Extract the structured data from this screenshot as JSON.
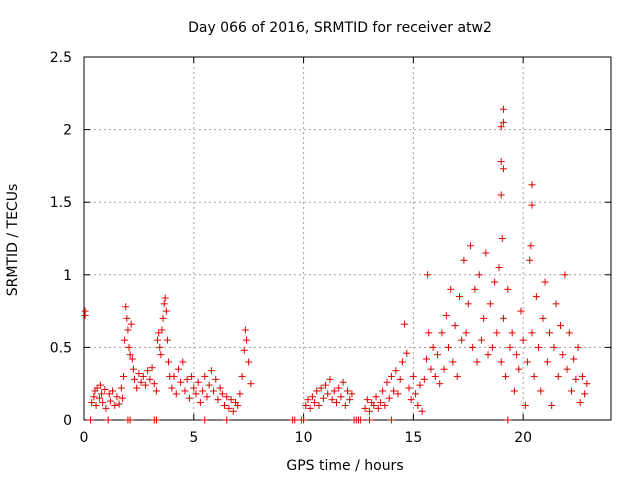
{
  "chart_data": {
    "type": "scatter",
    "title": "Day 066 of 2016, SRMTID for receiver atw2",
    "xlabel": "GPS time / hours",
    "ylabel": "SRMTID / TECUs",
    "xlim": [
      0,
      24
    ],
    "ylim": [
      0,
      2.5
    ],
    "xticks": [
      0,
      5,
      10,
      15,
      20
    ],
    "yticks": [
      0,
      0.5,
      1,
      1.5,
      2,
      2.5
    ],
    "xtick_labels": [
      "0",
      "5",
      "10",
      "15",
      "20"
    ],
    "ytick_labels": [
      "0",
      "0.5",
      "1",
      "1.5",
      "2",
      "2.5"
    ],
    "grid": true,
    "marker": "+",
    "color": "#e00000",
    "series": [
      {
        "name": "atw2",
        "points": [
          [
            0.05,
            0.75
          ],
          [
            0.05,
            0.72
          ],
          [
            0.3,
            0.0
          ],
          [
            0.35,
            0.12
          ],
          [
            0.45,
            0.16
          ],
          [
            0.5,
            0.2
          ],
          [
            0.55,
            0.1
          ],
          [
            0.6,
            0.22
          ],
          [
            0.7,
            0.15
          ],
          [
            0.75,
            0.24
          ],
          [
            0.8,
            0.18
          ],
          [
            0.85,
            0.12
          ],
          [
            0.95,
            0.21
          ],
          [
            1.0,
            0.08
          ],
          [
            1.1,
            0.0
          ],
          [
            1.15,
            0.18
          ],
          [
            1.2,
            0.13
          ],
          [
            1.3,
            0.2
          ],
          [
            1.4,
            0.1
          ],
          [
            1.5,
            0.16
          ],
          [
            1.6,
            0.11
          ],
          [
            1.7,
            0.22
          ],
          [
            1.75,
            0.15
          ],
          [
            1.8,
            0.3
          ],
          [
            1.85,
            0.55
          ],
          [
            1.9,
            0.78
          ],
          [
            1.95,
            0.7
          ],
          [
            2.0,
            0.62
          ],
          [
            2.05,
            0.5
          ],
          [
            2.1,
            0.45
          ],
          [
            2.15,
            0.66
          ],
          [
            2.2,
            0.42
          ],
          [
            2.25,
            0.35
          ],
          [
            2.3,
            0.28
          ],
          [
            2.4,
            0.22
          ],
          [
            2.5,
            0.32
          ],
          [
            2.6,
            0.26
          ],
          [
            2.7,
            0.3
          ],
          [
            2.8,
            0.24
          ],
          [
            2.9,
            0.34
          ],
          [
            3.0,
            0.28
          ],
          [
            3.1,
            0.36
          ],
          [
            3.2,
            0.25
          ],
          [
            3.3,
            0.2
          ],
          [
            3.35,
            0.55
          ],
          [
            3.4,
            0.6
          ],
          [
            3.45,
            0.5
          ],
          [
            3.5,
            0.45
          ],
          [
            3.55,
            0.62
          ],
          [
            3.6,
            0.7
          ],
          [
            3.65,
            0.8
          ],
          [
            3.7,
            0.84
          ],
          [
            3.75,
            0.75
          ],
          [
            3.8,
            0.55
          ],
          [
            3.85,
            0.4
          ],
          [
            3.9,
            0.3
          ],
          [
            4.0,
            0.22
          ],
          [
            4.1,
            0.3
          ],
          [
            4.2,
            0.18
          ],
          [
            4.3,
            0.35
          ],
          [
            4.4,
            0.26
          ],
          [
            4.5,
            0.4
          ],
          [
            4.6,
            0.2
          ],
          [
            4.7,
            0.28
          ],
          [
            4.8,
            0.15
          ],
          [
            4.9,
            0.3
          ],
          [
            5.0,
            0.22
          ],
          [
            5.1,
            0.18
          ],
          [
            5.2,
            0.26
          ],
          [
            5.3,
            0.12
          ],
          [
            5.4,
            0.2
          ],
          [
            5.5,
            0.3
          ],
          [
            5.6,
            0.16
          ],
          [
            5.7,
            0.24
          ],
          [
            5.8,
            0.34
          ],
          [
            5.9,
            0.2
          ],
          [
            6.0,
            0.28
          ],
          [
            6.1,
            0.14
          ],
          [
            6.2,
            0.22
          ],
          [
            6.3,
            0.18
          ],
          [
            6.4,
            0.1
          ],
          [
            6.5,
            0.16
          ],
          [
            6.6,
            0.08
          ],
          [
            6.7,
            0.14
          ],
          [
            6.8,
            0.06
          ],
          [
            6.9,
            0.12
          ],
          [
            7.0,
            0.1
          ],
          [
            7.1,
            0.18
          ],
          [
            7.2,
            0.3
          ],
          [
            7.3,
            0.48
          ],
          [
            7.35,
            0.62
          ],
          [
            7.4,
            0.55
          ],
          [
            7.5,
            0.4
          ],
          [
            7.6,
            0.25
          ],
          [
            5.5,
            0.0
          ],
          [
            6.5,
            0.0
          ],
          [
            3.2,
            0.0
          ],
          [
            3.3,
            0.0
          ],
          [
            2.0,
            0.0
          ],
          [
            2.1,
            0.0
          ],
          [
            9.5,
            0.0
          ],
          [
            9.6,
            0.0
          ],
          [
            9.9,
            0.0
          ],
          [
            10.0,
            0.0
          ],
          [
            10.1,
            0.1
          ],
          [
            10.2,
            0.14
          ],
          [
            10.3,
            0.08
          ],
          [
            10.4,
            0.16
          ],
          [
            10.5,
            0.12
          ],
          [
            10.6,
            0.2
          ],
          [
            10.7,
            0.1
          ],
          [
            10.8,
            0.22
          ],
          [
            10.9,
            0.15
          ],
          [
            11.0,
            0.24
          ],
          [
            11.1,
            0.18
          ],
          [
            11.2,
            0.28
          ],
          [
            11.3,
            0.14
          ],
          [
            11.4,
            0.2
          ],
          [
            11.5,
            0.12
          ],
          [
            11.6,
            0.22
          ],
          [
            11.7,
            0.16
          ],
          [
            11.8,
            0.26
          ],
          [
            11.9,
            0.1
          ],
          [
            12.0,
            0.2
          ],
          [
            12.1,
            0.14
          ],
          [
            12.2,
            0.18
          ],
          [
            12.3,
            0.0
          ],
          [
            12.4,
            0.0
          ],
          [
            12.5,
            0.0
          ],
          [
            12.6,
            0.0
          ],
          [
            12.8,
            0.08
          ],
          [
            12.9,
            0.14
          ],
          [
            13.0,
            0.06
          ],
          [
            13.1,
            0.12
          ],
          [
            13.2,
            0.1
          ],
          [
            13.3,
            0.16
          ],
          [
            13.4,
            0.08
          ],
          [
            13.5,
            0.12
          ],
          [
            13.6,
            0.2
          ],
          [
            13.7,
            0.1
          ],
          [
            13.8,
            0.26
          ],
          [
            13.9,
            0.15
          ],
          [
            14.0,
            0.3
          ],
          [
            14.1,
            0.2
          ],
          [
            14.2,
            0.34
          ],
          [
            14.3,
            0.18
          ],
          [
            14.4,
            0.28
          ],
          [
            14.5,
            0.4
          ],
          [
            14.6,
            0.66
          ],
          [
            14.7,
            0.46
          ],
          [
            14.8,
            0.22
          ],
          [
            14.9,
            0.14
          ],
          [
            15.0,
            0.3
          ],
          [
            15.1,
            0.18
          ],
          [
            15.2,
            0.1
          ],
          [
            15.3,
            0.24
          ],
          [
            15.4,
            0.06
          ],
          [
            13.0,
            0.0
          ],
          [
            14.0,
            0.0
          ],
          [
            15.5,
            0.28
          ],
          [
            15.6,
            0.42
          ],
          [
            15.65,
            1.0
          ],
          [
            15.7,
            0.6
          ],
          [
            15.8,
            0.35
          ],
          [
            15.9,
            0.5
          ],
          [
            16.0,
            0.3
          ],
          [
            16.1,
            0.45
          ],
          [
            16.2,
            0.25
          ],
          [
            16.3,
            0.6
          ],
          [
            16.4,
            0.35
          ],
          [
            16.5,
            0.72
          ],
          [
            16.6,
            0.5
          ],
          [
            16.7,
            0.9
          ],
          [
            16.8,
            0.4
          ],
          [
            16.9,
            0.65
          ],
          [
            17.0,
            0.3
          ],
          [
            17.1,
            0.85
          ],
          [
            17.2,
            0.55
          ],
          [
            17.3,
            1.1
          ],
          [
            17.4,
            0.6
          ],
          [
            17.5,
            0.8
          ],
          [
            17.6,
            1.2
          ],
          [
            17.7,
            0.5
          ],
          [
            17.8,
            0.9
          ],
          [
            17.9,
            0.4
          ],
          [
            18.0,
            1.0
          ],
          [
            18.1,
            0.55
          ],
          [
            18.2,
            0.7
          ],
          [
            18.3,
            1.15
          ],
          [
            18.4,
            0.45
          ],
          [
            18.5,
            0.8
          ],
          [
            18.6,
            0.5
          ],
          [
            18.7,
            0.95
          ],
          [
            18.8,
            0.6
          ],
          [
            18.9,
            1.05
          ],
          [
            19.0,
            0.4
          ],
          [
            19.05,
            1.25
          ],
          [
            19.1,
            0.7
          ],
          [
            19.2,
            0.3
          ],
          [
            19.3,
            0.9
          ],
          [
            19.4,
            0.5
          ],
          [
            19.5,
            0.6
          ],
          [
            19.6,
            0.2
          ],
          [
            19.7,
            0.45
          ],
          [
            19.8,
            0.35
          ],
          [
            19.9,
            0.75
          ],
          [
            20.0,
            0.55
          ],
          [
            20.1,
            0.1
          ],
          [
            20.2,
            0.4
          ],
          [
            20.3,
            1.1
          ],
          [
            20.35,
            1.2
          ],
          [
            20.4,
            0.6
          ],
          [
            20.5,
            0.3
          ],
          [
            20.6,
            0.85
          ],
          [
            20.7,
            0.5
          ],
          [
            20.8,
            0.2
          ],
          [
            20.9,
            0.7
          ],
          [
            21.0,
            0.95
          ],
          [
            21.1,
            0.4
          ],
          [
            21.2,
            0.6
          ],
          [
            21.3,
            0.1
          ],
          [
            21.4,
            0.5
          ],
          [
            21.5,
            0.8
          ],
          [
            21.6,
            0.3
          ],
          [
            21.7,
            0.65
          ],
          [
            21.8,
            0.45
          ],
          [
            21.9,
            1.0
          ],
          [
            22.0,
            0.35
          ],
          [
            22.1,
            0.6
          ],
          [
            22.2,
            0.2
          ],
          [
            22.3,
            0.42
          ],
          [
            22.4,
            0.28
          ],
          [
            22.5,
            0.5
          ],
          [
            22.6,
            0.12
          ],
          [
            22.7,
            0.3
          ],
          [
            22.8,
            0.18
          ],
          [
            22.9,
            0.25
          ],
          [
            19.1,
            2.14
          ],
          [
            19.1,
            2.05
          ],
          [
            19.0,
            2.02
          ],
          [
            19.0,
            1.78
          ],
          [
            19.1,
            1.73
          ],
          [
            19.0,
            1.55
          ],
          [
            20.4,
            1.62
          ],
          [
            20.4,
            1.48
          ],
          [
            19.3,
            0.0
          ]
        ]
      }
    ]
  }
}
